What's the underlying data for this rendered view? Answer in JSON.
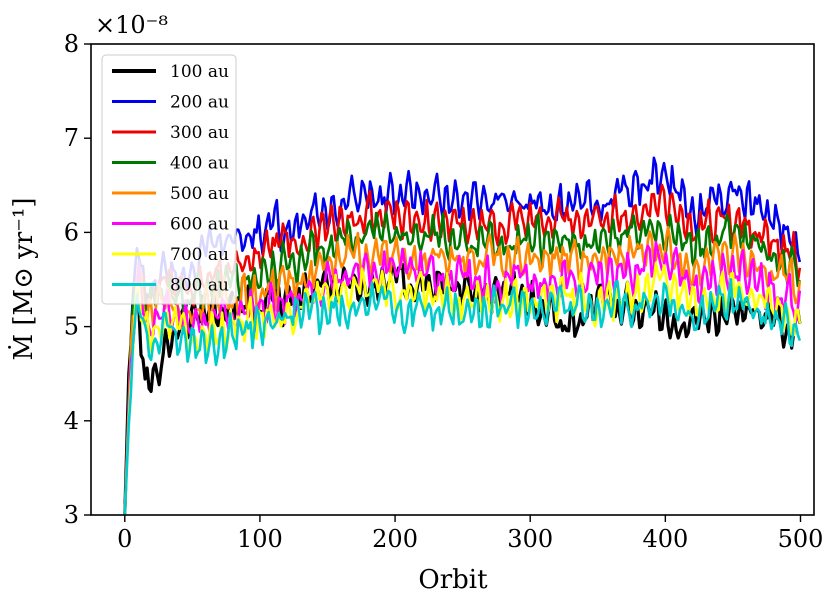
{
  "chart_data": {
    "type": "line",
    "xlabel": "Orbit",
    "ylabel": "Ṁ [M⊙ yr⁻¹]",
    "y_multiplier": "×10⁻⁸",
    "xlim": [
      -25,
      510
    ],
    "ylim": [
      3,
      8
    ],
    "x_ticks": [
      0,
      100,
      200,
      300,
      400,
      500
    ],
    "y_ticks": [
      3,
      4,
      5,
      6,
      7,
      8
    ],
    "legend_position": "upper-left",
    "grid": false,
    "series": [
      {
        "name": "100 au",
        "color": "#000000",
        "x": [
          0,
          3,
          6,
          10,
          15,
          20,
          30,
          40,
          50,
          60,
          80,
          100,
          130,
          160,
          180,
          200,
          250,
          300,
          330,
          350,
          400,
          420,
          450,
          480,
          500
        ],
        "y": [
          3.0,
          4.5,
          5.4,
          5.2,
          4.4,
          4.4,
          4.8,
          5.0,
          5.1,
          5.2,
          5.3,
          5.2,
          5.3,
          5.5,
          5.4,
          5.5,
          5.4,
          5.3,
          5.0,
          5.3,
          5.1,
          5.0,
          5.2,
          5.1,
          4.9
        ]
      },
      {
        "name": "200 au",
        "color": "#0000ee",
        "x": [
          0,
          5,
          10,
          15,
          20,
          30,
          40,
          50,
          60,
          80,
          100,
          130,
          160,
          180,
          200,
          250,
          300,
          350,
          400,
          420,
          450,
          480,
          500
        ],
        "y": [
          3.0,
          5.1,
          5.9,
          5.3,
          5.4,
          5.6,
          5.5,
          5.6,
          5.8,
          5.9,
          6.0,
          6.1,
          6.3,
          6.4,
          6.4,
          6.3,
          6.3,
          6.3,
          6.6,
          6.2,
          6.4,
          6.1,
          5.9
        ]
      },
      {
        "name": "300 au",
        "color": "#ee0000",
        "x": [
          0,
          5,
          10,
          15,
          20,
          30,
          40,
          50,
          60,
          80,
          100,
          130,
          160,
          180,
          200,
          250,
          300,
          350,
          400,
          420,
          450,
          480,
          500
        ],
        "y": [
          3.0,
          5.0,
          5.8,
          5.2,
          5.3,
          5.5,
          5.4,
          5.4,
          5.6,
          5.6,
          5.8,
          5.9,
          6.1,
          6.2,
          6.2,
          6.1,
          6.1,
          6.1,
          6.3,
          6.0,
          6.2,
          5.9,
          5.7
        ]
      },
      {
        "name": "400 au",
        "color": "#007700",
        "x": [
          0,
          5,
          10,
          15,
          20,
          30,
          40,
          50,
          60,
          80,
          100,
          130,
          160,
          180,
          200,
          250,
          300,
          350,
          400,
          420,
          450,
          480,
          500
        ],
        "y": [
          3.0,
          5.0,
          5.7,
          5.2,
          5.2,
          5.4,
          5.3,
          5.3,
          5.4,
          5.5,
          5.6,
          5.7,
          5.9,
          6.0,
          6.0,
          5.9,
          5.9,
          5.9,
          6.1,
          5.8,
          6.0,
          5.8,
          5.6
        ]
      },
      {
        "name": "500 au",
        "color": "#ff8800",
        "x": [
          0,
          5,
          10,
          15,
          20,
          30,
          40,
          50,
          60,
          80,
          100,
          130,
          160,
          180,
          200,
          250,
          300,
          350,
          400,
          420,
          450,
          480,
          500
        ],
        "y": [
          3.0,
          4.9,
          5.6,
          5.1,
          5.1,
          5.3,
          5.2,
          5.1,
          5.2,
          5.3,
          5.4,
          5.5,
          5.7,
          5.8,
          5.8,
          5.7,
          5.7,
          5.7,
          5.9,
          5.6,
          5.8,
          5.6,
          5.4
        ]
      },
      {
        "name": "600 au",
        "color": "#ff00ff",
        "x": [
          0,
          5,
          10,
          15,
          20,
          30,
          40,
          50,
          60,
          80,
          100,
          130,
          160,
          180,
          200,
          250,
          300,
          350,
          400,
          420,
          450,
          480,
          500
        ],
        "y": [
          3.0,
          4.8,
          5.5,
          5.1,
          5.0,
          5.2,
          5.1,
          5.0,
          5.0,
          5.1,
          5.2,
          5.3,
          5.5,
          5.6,
          5.6,
          5.5,
          5.5,
          5.5,
          5.7,
          5.4,
          5.6,
          5.4,
          5.2
        ]
      },
      {
        "name": "700 au",
        "color": "#ffff00",
        "x": [
          0,
          5,
          10,
          15,
          20,
          30,
          40,
          50,
          60,
          80,
          100,
          130,
          160,
          180,
          200,
          250,
          300,
          350,
          400,
          420,
          450,
          480,
          500
        ],
        "y": [
          3.0,
          4.7,
          5.4,
          5.0,
          4.9,
          5.1,
          5.0,
          4.9,
          4.9,
          5.0,
          5.1,
          5.2,
          5.4,
          5.5,
          5.4,
          5.3,
          5.3,
          5.3,
          5.5,
          5.2,
          5.4,
          5.2,
          5.1
        ]
      },
      {
        "name": "800 au",
        "color": "#00cccc",
        "x": [
          0,
          5,
          10,
          15,
          20,
          30,
          40,
          50,
          60,
          80,
          100,
          130,
          160,
          180,
          200,
          250,
          300,
          350,
          400,
          420,
          450,
          480,
          500
        ],
        "y": [
          3.0,
          4.6,
          5.3,
          4.9,
          4.8,
          5.0,
          4.9,
          4.8,
          4.8,
          4.9,
          5.0,
          5.1,
          5.2,
          5.3,
          5.2,
          5.2,
          5.2,
          5.2,
          5.3,
          5.1,
          5.3,
          5.1,
          4.9
        ]
      }
    ]
  }
}
